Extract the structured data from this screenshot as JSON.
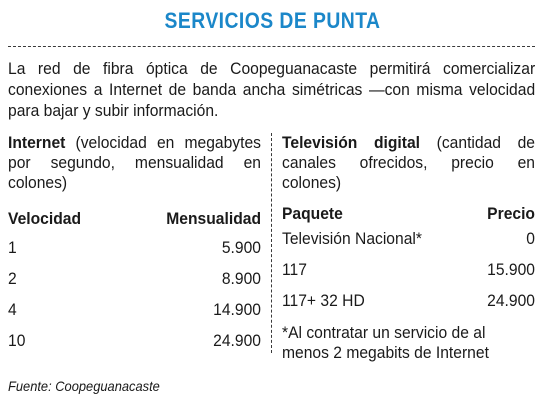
{
  "title": "SERVICIOS DE PUNTA",
  "intro": "La red de fibra óptica de Coopeguanacaste permitirá comercializar conexiones a Internet de banda ancha simétricas —con misma velocidad para bajar y subir información.",
  "internet": {
    "label": "Internet",
    "desc": " (velocidad en megabytes por segundo, mensualidad en colones)",
    "col1": "Velocidad",
    "col2": "Mensualidad",
    "rows": [
      {
        "speed": "1",
        "price": "5.900"
      },
      {
        "speed": "2",
        "price": "8.900"
      },
      {
        "speed": "4",
        "price": "14.900"
      },
      {
        "speed": "10",
        "price": "24.900"
      }
    ]
  },
  "tv": {
    "label": "Televisión digital",
    "desc": " (cantidad de canales ofrecidos, precio en colones)",
    "col1": "Paquete",
    "col2": "Precio",
    "rows": [
      {
        "pkg": "Televisión Nacional*",
        "price": "0"
      },
      {
        "pkg": "117",
        "price": "15.900"
      },
      {
        "pkg": "117+ 32 HD",
        "price": "24.900"
      }
    ],
    "note": "*Al contratar un servicio de al menos 2 megabits de Internet"
  },
  "source": "Fuente: Coopeguanacaste"
}
